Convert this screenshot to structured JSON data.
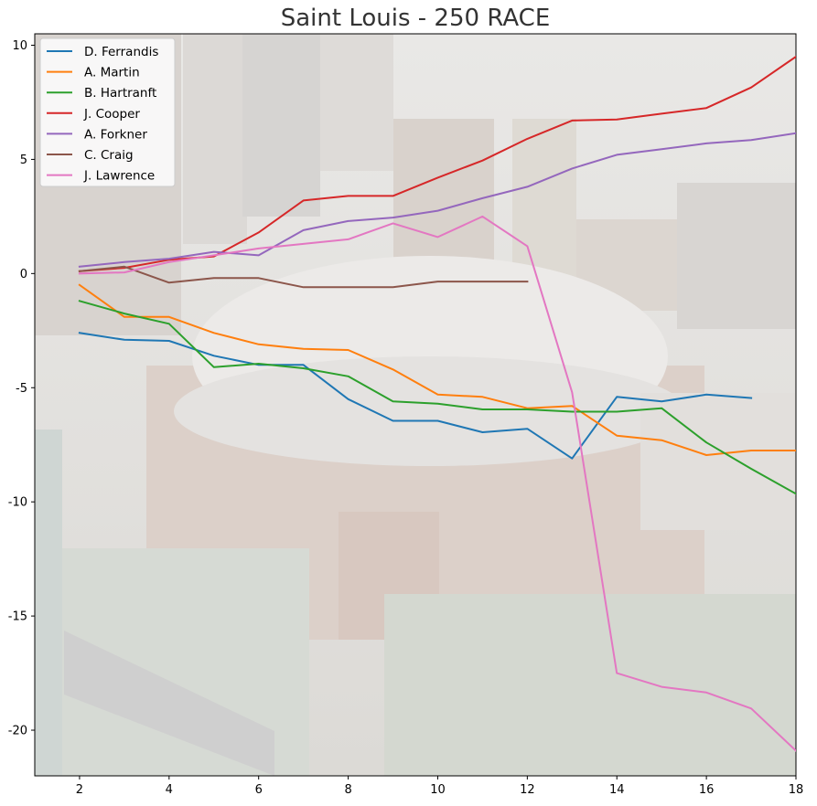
{
  "chart_data": {
    "type": "line",
    "title": "Saint Louis - 250 RACE",
    "xlabel": "",
    "ylabel": "",
    "xlim": [
      1,
      18
    ],
    "ylim": [
      -22,
      10.5
    ],
    "x_ticks": [
      2,
      4,
      6,
      8,
      10,
      12,
      14,
      16,
      18
    ],
    "y_ticks": [
      10,
      5,
      0,
      -5,
      -10,
      -15,
      -20
    ],
    "grid": false,
    "legend_position": "top-left",
    "background": "aerial photo of a downtown stadium, heavily faded",
    "series": [
      {
        "name": "D. Ferrandis",
        "color": "#1f77b4",
        "x": [
          2,
          3,
          4,
          5,
          6,
          7,
          8,
          9,
          10,
          11,
          12,
          13,
          14,
          15,
          16,
          17
        ],
        "y": [
          -2.6,
          -2.9,
          -2.95,
          -3.6,
          -4.0,
          -4.0,
          -5.5,
          -6.45,
          -6.45,
          -6.95,
          -6.8,
          -8.1,
          -5.4,
          -5.6,
          -5.3,
          -5.45
        ]
      },
      {
        "name": "A. Martin",
        "color": "#ff7f0e",
        "x": [
          2,
          3,
          4,
          5,
          6,
          7,
          8,
          9,
          10,
          11,
          12,
          13,
          14,
          15,
          16,
          17,
          18
        ],
        "y": [
          -0.5,
          -1.9,
          -1.9,
          -2.6,
          -3.1,
          -3.3,
          -3.35,
          -4.2,
          -5.3,
          -5.4,
          -5.9,
          -5.8,
          -7.1,
          -7.3,
          -7.95,
          -7.75,
          -7.75
        ]
      },
      {
        "name": "B. Hartranft",
        "color": "#2ca02c",
        "x": [
          2,
          3,
          4,
          5,
          6,
          7,
          8,
          9,
          10,
          11,
          12,
          13,
          14,
          15,
          16,
          17,
          18
        ],
        "y": [
          -1.2,
          -1.75,
          -2.2,
          -4.1,
          -3.95,
          -4.15,
          -4.5,
          -5.6,
          -5.7,
          -5.95,
          -5.95,
          -6.05,
          -6.05,
          -5.9,
          -7.4,
          -8.55,
          -9.65
        ]
      },
      {
        "name": "J. Cooper",
        "color": "#d62728",
        "x": [
          2,
          3,
          4,
          5,
          6,
          7,
          8,
          9,
          10,
          11,
          12,
          13,
          14,
          15,
          16,
          17,
          18
        ],
        "y": [
          0.1,
          0.25,
          0.6,
          0.75,
          1.8,
          3.2,
          3.4,
          3.4,
          4.2,
          4.95,
          5.9,
          6.7,
          6.75,
          7.0,
          7.25,
          8.15,
          9.5
        ]
      },
      {
        "name": "A. Forkner",
        "color": "#9467bd",
        "x": [
          2,
          3,
          4,
          5,
          6,
          7,
          8,
          9,
          10,
          11,
          12,
          13,
          14,
          15,
          16,
          17,
          18
        ],
        "y": [
          0.3,
          0.5,
          0.65,
          0.95,
          0.8,
          1.9,
          2.3,
          2.45,
          2.75,
          3.3,
          3.8,
          4.6,
          5.2,
          5.45,
          5.7,
          5.85,
          6.15
        ]
      },
      {
        "name": "C. Craig",
        "color": "#8c564b",
        "x": [
          2,
          3,
          4,
          5,
          6,
          7,
          8,
          9,
          10,
          11,
          12
        ],
        "y": [
          0.1,
          0.3,
          -0.4,
          -0.2,
          -0.2,
          -0.6,
          -0.6,
          -0.6,
          -0.35,
          -0.35,
          -0.35
        ]
      },
      {
        "name": "J. Lawrence",
        "color": "#e377c2",
        "x": [
          2,
          3,
          4,
          5,
          6,
          7,
          8,
          9,
          10,
          11,
          12,
          13,
          14,
          15,
          16,
          17,
          18
        ],
        "y": [
          0.0,
          0.05,
          0.5,
          0.8,
          1.1,
          1.3,
          1.5,
          2.2,
          1.6,
          2.5,
          1.2,
          -5.2,
          -17.5,
          -18.1,
          -18.35,
          -19.05,
          -20.9
        ]
      }
    ]
  }
}
